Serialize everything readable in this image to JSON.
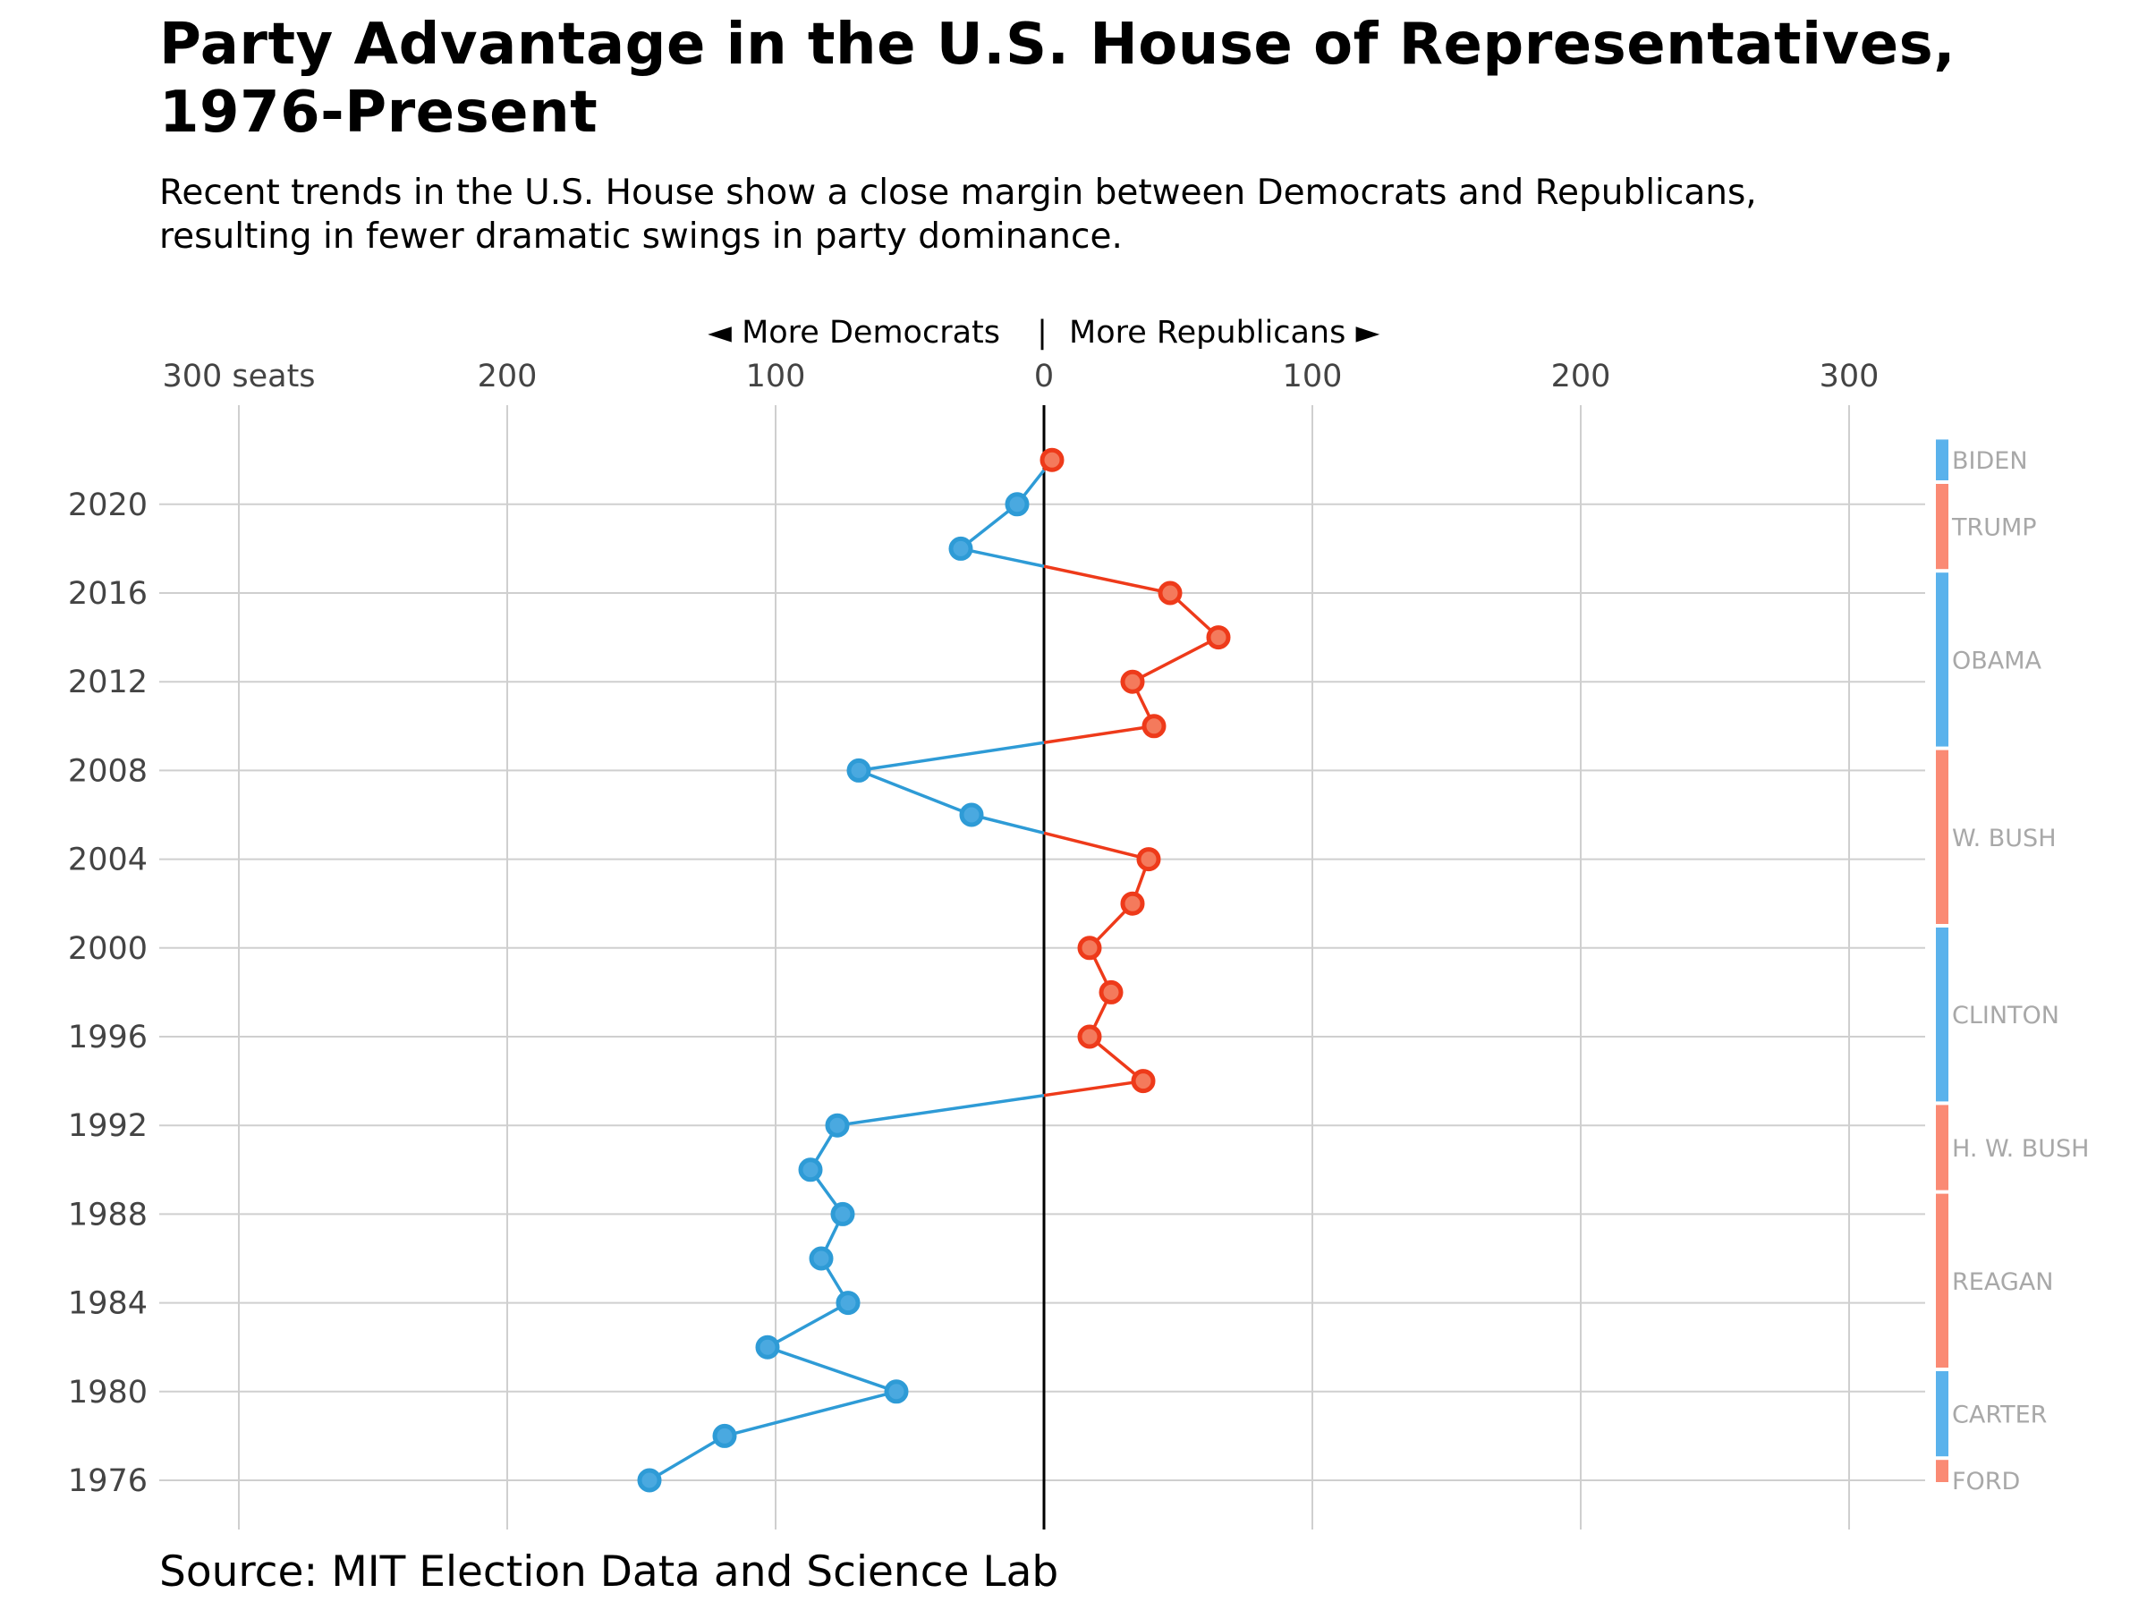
{
  "title": "Party Advantage in the U.S. House of Representatives, 1976-Present",
  "subtitle": "Recent trends in the U.S. House show a close margin between Democrats and Republicans, resulting in fewer dramatic swings in party dominance.",
  "source": "Source: MIT Election Data and Science Lab",
  "colors": {
    "democrat_line": "#2e9bd6",
    "democrat_point_fill": "#4aa9e0",
    "republican_line": "#ee3a1a",
    "republican_point_fill": "#f47a5c",
    "democrat_admin_bar": "#5ab2ec",
    "republican_admin_bar": "#fa8a74",
    "zero_line": "#000000",
    "grid": "#cfcfcf"
  },
  "chart_data": {
    "type": "line",
    "orientation": "vertical",
    "direction_labels": {
      "left": "◄ More Democrats",
      "separator": "|",
      "right": "More Republicans ►"
    },
    "x_ticks": [
      {
        "value": -300,
        "label": "300 seats"
      },
      {
        "value": -200,
        "label": "200"
      },
      {
        "value": -100,
        "label": "100"
      },
      {
        "value": 0,
        "label": "0"
      },
      {
        "value": 100,
        "label": "100"
      },
      {
        "value": 200,
        "label": "200"
      },
      {
        "value": 300,
        "label": "300"
      }
    ],
    "xlim": [
      -300,
      300
    ],
    "y_ticks": [
      2020,
      2016,
      2012,
      2008,
      2004,
      2000,
      1996,
      1992,
      1988,
      1984,
      1980,
      1976
    ],
    "ylim": [
      1976,
      2022
    ],
    "grid": true,
    "points": [
      {
        "year": 1976,
        "value": -147
      },
      {
        "year": 1978,
        "value": -119
      },
      {
        "year": 1980,
        "value": -55
      },
      {
        "year": 1982,
        "value": -103
      },
      {
        "year": 1984,
        "value": -73
      },
      {
        "year": 1986,
        "value": -83
      },
      {
        "year": 1988,
        "value": -75
      },
      {
        "year": 1990,
        "value": -87
      },
      {
        "year": 1992,
        "value": -77
      },
      {
        "year": 1994,
        "value": 37
      },
      {
        "year": 1996,
        "value": 17
      },
      {
        "year": 1998,
        "value": 25
      },
      {
        "year": 2000,
        "value": 17
      },
      {
        "year": 2002,
        "value": 33
      },
      {
        "year": 2004,
        "value": 39
      },
      {
        "year": 2006,
        "value": -27
      },
      {
        "year": 2008,
        "value": -69
      },
      {
        "year": 2010,
        "value": 41
      },
      {
        "year": 2012,
        "value": 33
      },
      {
        "year": 2014,
        "value": 65
      },
      {
        "year": 2016,
        "value": 47
      },
      {
        "year": 2018,
        "value": -31
      },
      {
        "year": 2020,
        "value": -10
      },
      {
        "year": 2022,
        "value": 3
      }
    ],
    "administrations": [
      {
        "name": "FORD",
        "party": "R",
        "start": 1976,
        "end": 1977
      },
      {
        "name": "CARTER",
        "party": "D",
        "start": 1977,
        "end": 1981
      },
      {
        "name": "REAGAN",
        "party": "R",
        "start": 1981,
        "end": 1989
      },
      {
        "name": "H. W. BUSH",
        "party": "R",
        "start": 1989,
        "end": 1993
      },
      {
        "name": "CLINTON",
        "party": "D",
        "start": 1993,
        "end": 2001
      },
      {
        "name": "W. BUSH",
        "party": "R",
        "start": 2001,
        "end": 2009
      },
      {
        "name": "OBAMA",
        "party": "D",
        "start": 2009,
        "end": 2017
      },
      {
        "name": "TRUMP",
        "party": "R",
        "start": 2017,
        "end": 2021
      },
      {
        "name": "BIDEN",
        "party": "D",
        "start": 2021,
        "end": 2023
      }
    ]
  }
}
